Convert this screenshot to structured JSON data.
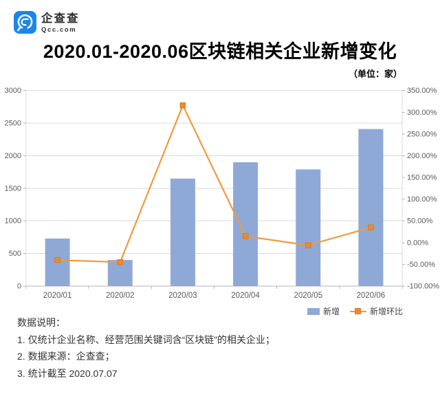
{
  "logo": {
    "brand": "企查查",
    "domain": "Qcc.com",
    "icon": "qcc-swirl-at-icon",
    "brand_color": "#1A87E8"
  },
  "title": "2020.01-2020.06区块链相关企业新增变化",
  "unit_label": "（单位：家）",
  "chart_data": {
    "type": "combo-bar-line",
    "title": "2020.01-2020.06区块链相关企业新增变化",
    "unit": "家",
    "categories": [
      "2020/01",
      "2020/02",
      "2020/03",
      "2020/04",
      "2020/05",
      "2020/06"
    ],
    "series": [
      {
        "name": "新增",
        "type": "bar",
        "axis": "left",
        "color": "#8FA9D6",
        "values": [
          730,
          400,
          1650,
          1900,
          1790,
          2410
        ]
      },
      {
        "name": "新增环比",
        "type": "line",
        "axis": "right",
        "color": "#F09A3E",
        "marker": "square",
        "marker_color": "#ED8A2F",
        "marker_border": "#DD7A1E",
        "values_percent": [
          -40,
          -45,
          316,
          15,
          -6,
          35
        ]
      }
    ],
    "left_axis": {
      "min": 0,
      "max": 3000,
      "ticks": [
        "0",
        "500",
        "1000",
        "1500",
        "2000",
        "2500",
        "3000"
      ]
    },
    "right_axis": {
      "min": -100,
      "max": 350,
      "ticks": [
        "-100.00%",
        "-50.00%",
        "0.00%",
        "50.00%",
        "100.00%",
        "150.00%",
        "200.00%",
        "250.00%",
        "300.00%",
        "350.00%"
      ]
    },
    "grid": true,
    "grid_color": "#D9D9D9",
    "axis_line_color": "#B5B5B5",
    "axis_text_color": "#595959",
    "legend_position": "bottom-right"
  },
  "notes": {
    "heading": "数据说明：",
    "items": [
      "1. 仅统计企业名称、经营范围关键词含“区块链”的相关企业；",
      "2. 数据来源：企查查；",
      "3. 统计截至 2020.07.07"
    ]
  }
}
